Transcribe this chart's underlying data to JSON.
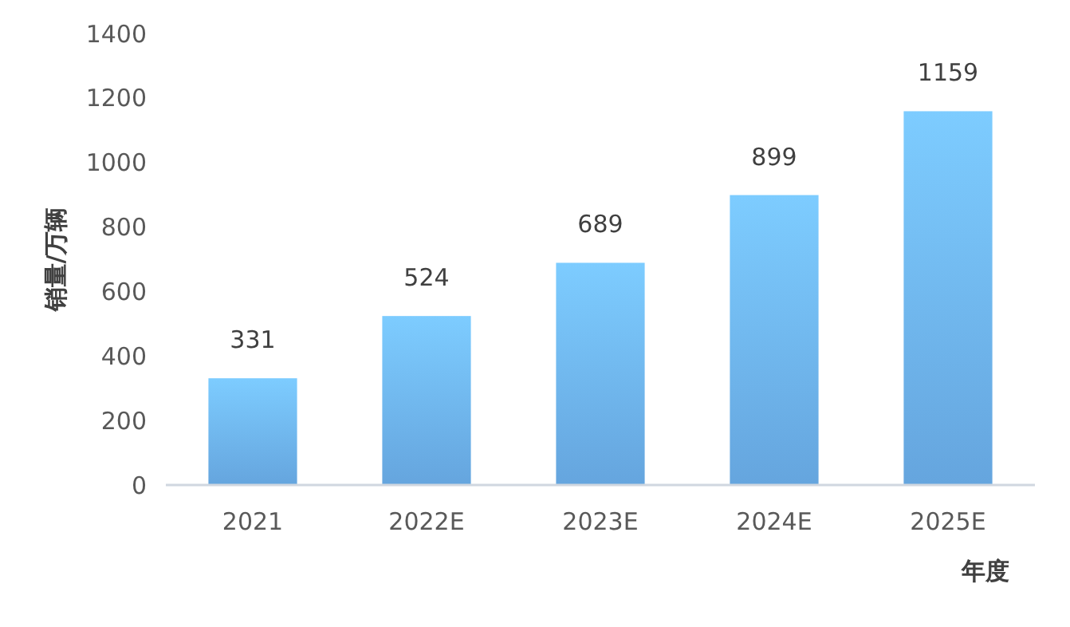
{
  "chart_data": {
    "type": "bar",
    "xlabel": "年度",
    "ylabel": "销量/万辆",
    "categories": [
      "2021",
      "2022E",
      "2023E",
      "2024E",
      "2025E"
    ],
    "values": [
      331,
      524,
      689,
      899,
      1159
    ],
    "color": "#6eb4f3",
    "data_labels": true,
    "ylim": [
      0,
      1400
    ],
    "yticks": [
      0,
      200,
      400,
      600,
      800,
      1000,
      1200,
      1400
    ],
    "grid": false
  }
}
